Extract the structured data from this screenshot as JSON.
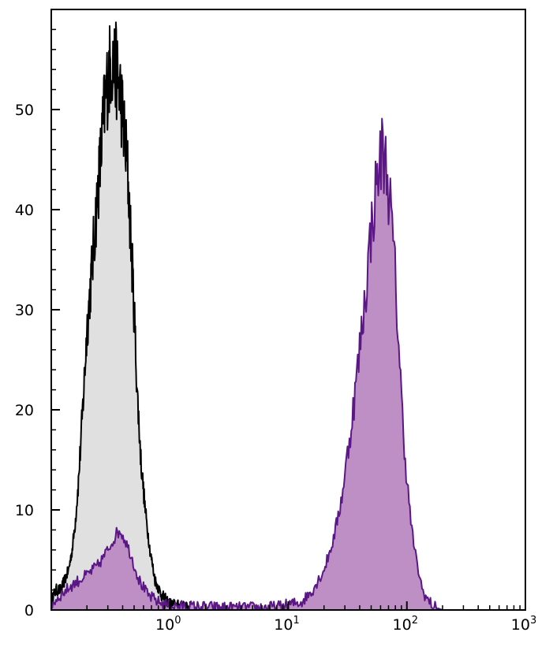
{
  "chart_data": {
    "type": "area",
    "title": "",
    "xlabel": "",
    "ylabel": "",
    "x_scale": "log",
    "xlim": [
      0.1,
      1000
    ],
    "ylim": [
      0,
      60
    ],
    "grid": false,
    "x_ticks": [
      {
        "value": 1,
        "base": "10",
        "exp": "0"
      },
      {
        "value": 10,
        "base": "10",
        "exp": "1"
      },
      {
        "value": 100,
        "base": "10",
        "exp": "2"
      },
      {
        "value": 1000,
        "base": "10",
        "exp": "3"
      }
    ],
    "y_ticks": [
      {
        "value": 0,
        "label": "0"
      },
      {
        "value": 10,
        "label": "10"
      },
      {
        "value": 20,
        "label": "20"
      },
      {
        "value": 30,
        "label": "30"
      },
      {
        "value": 40,
        "label": "40"
      },
      {
        "value": 50,
        "label": "50"
      }
    ],
    "series": [
      {
        "key": "control",
        "fill": "#e0e0e0",
        "stroke": "#000000",
        "points": [
          [
            0.1,
            1
          ],
          [
            0.11,
            2
          ],
          [
            0.12,
            2
          ],
          [
            0.13,
            3
          ],
          [
            0.14,
            4
          ],
          [
            0.15,
            6
          ],
          [
            0.16,
            9
          ],
          [
            0.17,
            13
          ],
          [
            0.18,
            18
          ],
          [
            0.19,
            23
          ],
          [
            0.2,
            28
          ],
          [
            0.22,
            34
          ],
          [
            0.24,
            40
          ],
          [
            0.26,
            45
          ],
          [
            0.28,
            50
          ],
          [
            0.3,
            53
          ],
          [
            0.32,
            55
          ],
          [
            0.35,
            54
          ],
          [
            0.38,
            52
          ],
          [
            0.41,
            48
          ],
          [
            0.44,
            44
          ],
          [
            0.47,
            37
          ],
          [
            0.5,
            30
          ],
          [
            0.53,
            22
          ],
          [
            0.57,
            15
          ],
          [
            0.62,
            10
          ],
          [
            0.68,
            6
          ],
          [
            0.75,
            3
          ],
          [
            0.85,
            1.5
          ],
          [
            1.0,
            0.6
          ],
          [
            1.3,
            0.3
          ],
          [
            2.0,
            0
          ]
        ]
      },
      {
        "key": "stained",
        "fill": "#be8fc5",
        "stroke": "#5b1785",
        "points": [
          [
            0.1,
            0.5
          ],
          [
            0.12,
            1.5
          ],
          [
            0.15,
            2.5
          ],
          [
            0.2,
            3.5
          ],
          [
            0.25,
            4.5
          ],
          [
            0.3,
            6
          ],
          [
            0.35,
            7.5
          ],
          [
            0.38,
            8
          ],
          [
            0.42,
            7
          ],
          [
            0.47,
            5.5
          ],
          [
            0.55,
            3
          ],
          [
            0.65,
            1.5
          ],
          [
            0.8,
            0.8
          ],
          [
            1.0,
            0.4
          ],
          [
            2.0,
            0.3
          ],
          [
            4.0,
            0.2
          ],
          [
            8.0,
            0.3
          ],
          [
            13,
            0.8
          ],
          [
            16,
            2
          ],
          [
            20,
            4
          ],
          [
            24,
            7
          ],
          [
            28,
            11
          ],
          [
            32,
            16
          ],
          [
            36,
            21
          ],
          [
            40,
            26
          ],
          [
            45,
            32
          ],
          [
            50,
            38
          ],
          [
            56,
            43
          ],
          [
            62,
            46
          ],
          [
            68,
            44
          ],
          [
            74,
            39
          ],
          [
            80,
            33
          ],
          [
            86,
            26
          ],
          [
            92,
            19
          ],
          [
            100,
            13
          ],
          [
            110,
            8
          ],
          [
            120,
            5
          ],
          [
            135,
            2
          ],
          [
            150,
            1
          ],
          [
            170,
            0.3
          ],
          [
            200,
            0
          ]
        ]
      }
    ]
  }
}
